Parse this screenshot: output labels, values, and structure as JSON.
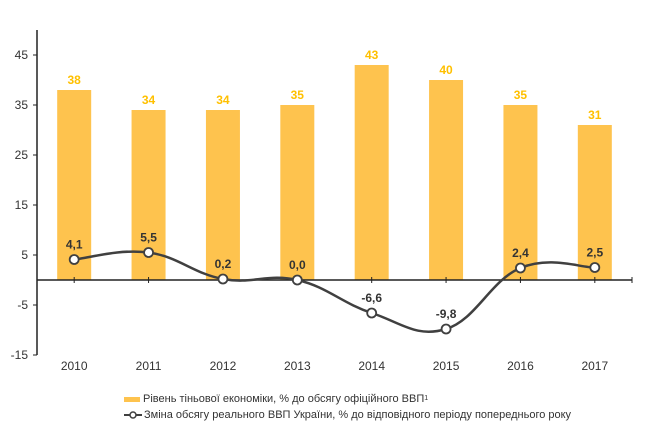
{
  "chart_data": {
    "type": "bar+line",
    "categories": [
      "2010",
      "2011",
      "2012",
      "2013",
      "2014",
      "2015",
      "2016",
      "2017"
    ],
    "series": [
      {
        "name": "Рівень тіньової економіки, % до обсягу офіційного ВВП",
        "type": "bar",
        "values": [
          38,
          34,
          34,
          35,
          43,
          40,
          35,
          31
        ],
        "labels": [
          "38",
          "34",
          "34",
          "35",
          "43",
          "40",
          "35",
          "31"
        ],
        "color": "#FEC34E",
        "label_color": "#FFC000"
      },
      {
        "name": "Зміна обсягу реального ВВП України, % до відповідного періоду попереднього року",
        "type": "line",
        "values": [
          4.1,
          5.5,
          0.2,
          0.0,
          -6.6,
          -9.8,
          2.4,
          2.5
        ],
        "labels": [
          "4,1",
          "5,5",
          "0,2",
          "0,0",
          "-6,6",
          "-9,8",
          "2,4",
          "2,5"
        ],
        "color": "#404040"
      }
    ],
    "y_ticks": [
      45,
      35,
      25,
      15,
      5,
      -5,
      -15
    ],
    "y_tick_labels": [
      "45",
      "35",
      "25",
      "15",
      "5",
      "-5",
      "-15"
    ],
    "ylim": [
      -15,
      50
    ],
    "title": "",
    "xlabel": "",
    "ylabel": "",
    "grid": false,
    "legend_position": "bottom"
  },
  "legend": {
    "bar_label": "Рівень тіньової економіки, % до обсягу офіційного ВВП",
    "bar_footnote": "1",
    "line_label": "Зміна обсягу реального ВВП України, % до відповідного періоду попереднього року"
  }
}
